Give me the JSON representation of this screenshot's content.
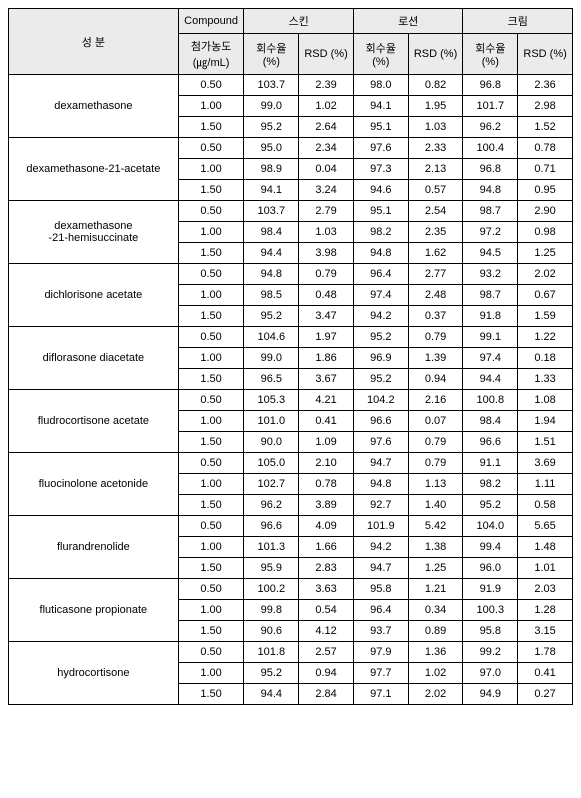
{
  "headers": {
    "component": "성 분",
    "compound": "Compound",
    "concentration": "첨가농도",
    "unit": "(㎍/mL)",
    "skin": "스킨",
    "lotion": "로션",
    "cream": "크림",
    "recovery": "회수율",
    "pct": "(%)",
    "rsd": "RSD (%)"
  },
  "compounds": [
    {
      "name": "dexamethasone",
      "rows": [
        {
          "c": "0.50",
          "sr": "103.7",
          "sd": "2.39",
          "lr": "98.0",
          "ld": "0.82",
          "cr": "96.8",
          "cd": "2.36"
        },
        {
          "c": "1.00",
          "sr": "99.0",
          "sd": "1.02",
          "lr": "94.1",
          "ld": "1.95",
          "cr": "101.7",
          "cd": "2.98"
        },
        {
          "c": "1.50",
          "sr": "95.2",
          "sd": "2.64",
          "lr": "95.1",
          "ld": "1.03",
          "cr": "96.2",
          "cd": "1.52"
        }
      ]
    },
    {
      "name": "dexamethasone-21-acetate",
      "rows": [
        {
          "c": "0.50",
          "sr": "95.0",
          "sd": "2.34",
          "lr": "97.6",
          "ld": "2.33",
          "cr": "100.4",
          "cd": "0.78"
        },
        {
          "c": "1.00",
          "sr": "98.9",
          "sd": "0.04",
          "lr": "97.3",
          "ld": "2.13",
          "cr": "96.8",
          "cd": "0.71"
        },
        {
          "c": "1.50",
          "sr": "94.1",
          "sd": "3.24",
          "lr": "94.6",
          "ld": "0.57",
          "cr": "94.8",
          "cd": "0.95"
        }
      ]
    },
    {
      "name": "dexamethasone\n-21-hemisuccinate",
      "rows": [
        {
          "c": "0.50",
          "sr": "103.7",
          "sd": "2.79",
          "lr": "95.1",
          "ld": "2.54",
          "cr": "98.7",
          "cd": "2.90"
        },
        {
          "c": "1.00",
          "sr": "98.4",
          "sd": "1.03",
          "lr": "98.2",
          "ld": "2.35",
          "cr": "97.2",
          "cd": "0.98"
        },
        {
          "c": "1.50",
          "sr": "94.4",
          "sd": "3.98",
          "lr": "94.8",
          "ld": "1.62",
          "cr": "94.5",
          "cd": "1.25"
        }
      ]
    },
    {
      "name": "dichlorisone acetate",
      "rows": [
        {
          "c": "0.50",
          "sr": "94.8",
          "sd": "0.79",
          "lr": "96.4",
          "ld": "2.77",
          "cr": "93.2",
          "cd": "2.02"
        },
        {
          "c": "1.00",
          "sr": "98.5",
          "sd": "0.48",
          "lr": "97.4",
          "ld": "2.48",
          "cr": "98.7",
          "cd": "0.67"
        },
        {
          "c": "1.50",
          "sr": "95.2",
          "sd": "3.47",
          "lr": "94.2",
          "ld": "0.37",
          "cr": "91.8",
          "cd": "1.59"
        }
      ]
    },
    {
      "name": "diflorasone diacetate",
      "rows": [
        {
          "c": "0.50",
          "sr": "104.6",
          "sd": "1.97",
          "lr": "95.2",
          "ld": "0.79",
          "cr": "99.1",
          "cd": "1.22"
        },
        {
          "c": "1.00",
          "sr": "99.0",
          "sd": "1.86",
          "lr": "96.9",
          "ld": "1.39",
          "cr": "97.4",
          "cd": "0.18"
        },
        {
          "c": "1.50",
          "sr": "96.5",
          "sd": "3.67",
          "lr": "95.2",
          "ld": "0.94",
          "cr": "94.4",
          "cd": "1.33"
        }
      ]
    },
    {
      "name": "fludrocortisone acetate",
      "rows": [
        {
          "c": "0.50",
          "sr": "105.3",
          "sd": "4.21",
          "lr": "104.2",
          "ld": "2.16",
          "cr": "100.8",
          "cd": "1.08"
        },
        {
          "c": "1.00",
          "sr": "101.0",
          "sd": "0.41",
          "lr": "96.6",
          "ld": "0.07",
          "cr": "98.4",
          "cd": "1.94"
        },
        {
          "c": "1.50",
          "sr": "90.0",
          "sd": "1.09",
          "lr": "97.6",
          "ld": "0.79",
          "cr": "96.6",
          "cd": "1.51"
        }
      ]
    },
    {
      "name": "fluocinolone acetonide",
      "rows": [
        {
          "c": "0.50",
          "sr": "105.0",
          "sd": "2.10",
          "lr": "94.7",
          "ld": "0.79",
          "cr": "91.1",
          "cd": "3.69"
        },
        {
          "c": "1.00",
          "sr": "102.7",
          "sd": "0.78",
          "lr": "94.8",
          "ld": "1.13",
          "cr": "98.2",
          "cd": "1.11"
        },
        {
          "c": "1.50",
          "sr": "96.2",
          "sd": "3.89",
          "lr": "92.7",
          "ld": "1.40",
          "cr": "95.2",
          "cd": "0.58"
        }
      ]
    },
    {
      "name": "flurandrenolide",
      "rows": [
        {
          "c": "0.50",
          "sr": "96.6",
          "sd": "4.09",
          "lr": "101.9",
          "ld": "5.42",
          "cr": "104.0",
          "cd": "5.65"
        },
        {
          "c": "1.00",
          "sr": "101.3",
          "sd": "1.66",
          "lr": "94.2",
          "ld": "1.38",
          "cr": "99.4",
          "cd": "1.48"
        },
        {
          "c": "1.50",
          "sr": "95.9",
          "sd": "2.83",
          "lr": "94.7",
          "ld": "1.25",
          "cr": "96.0",
          "cd": "1.01"
        }
      ]
    },
    {
      "name": "fluticasone propionate",
      "rows": [
        {
          "c": "0.50",
          "sr": "100.2",
          "sd": "3.63",
          "lr": "95.8",
          "ld": "1.21",
          "cr": "91.9",
          "cd": "2.03"
        },
        {
          "c": "1.00",
          "sr": "99.8",
          "sd": "0.54",
          "lr": "96.4",
          "ld": "0.34",
          "cr": "100.3",
          "cd": "1.28"
        },
        {
          "c": "1.50",
          "sr": "90.6",
          "sd": "4.12",
          "lr": "93.7",
          "ld": "0.89",
          "cr": "95.8",
          "cd": "3.15"
        }
      ]
    },
    {
      "name": "hydrocortisone",
      "rows": [
        {
          "c": "0.50",
          "sr": "101.8",
          "sd": "2.57",
          "lr": "97.9",
          "ld": "1.36",
          "cr": "99.2",
          "cd": "1.78"
        },
        {
          "c": "1.00",
          "sr": "95.2",
          "sd": "0.94",
          "lr": "97.7",
          "ld": "1.02",
          "cr": "97.0",
          "cd": "0.41"
        },
        {
          "c": "1.50",
          "sr": "94.4",
          "sd": "2.84",
          "lr": "97.1",
          "ld": "2.02",
          "cr": "94.9",
          "cd": "0.27"
        }
      ]
    }
  ]
}
